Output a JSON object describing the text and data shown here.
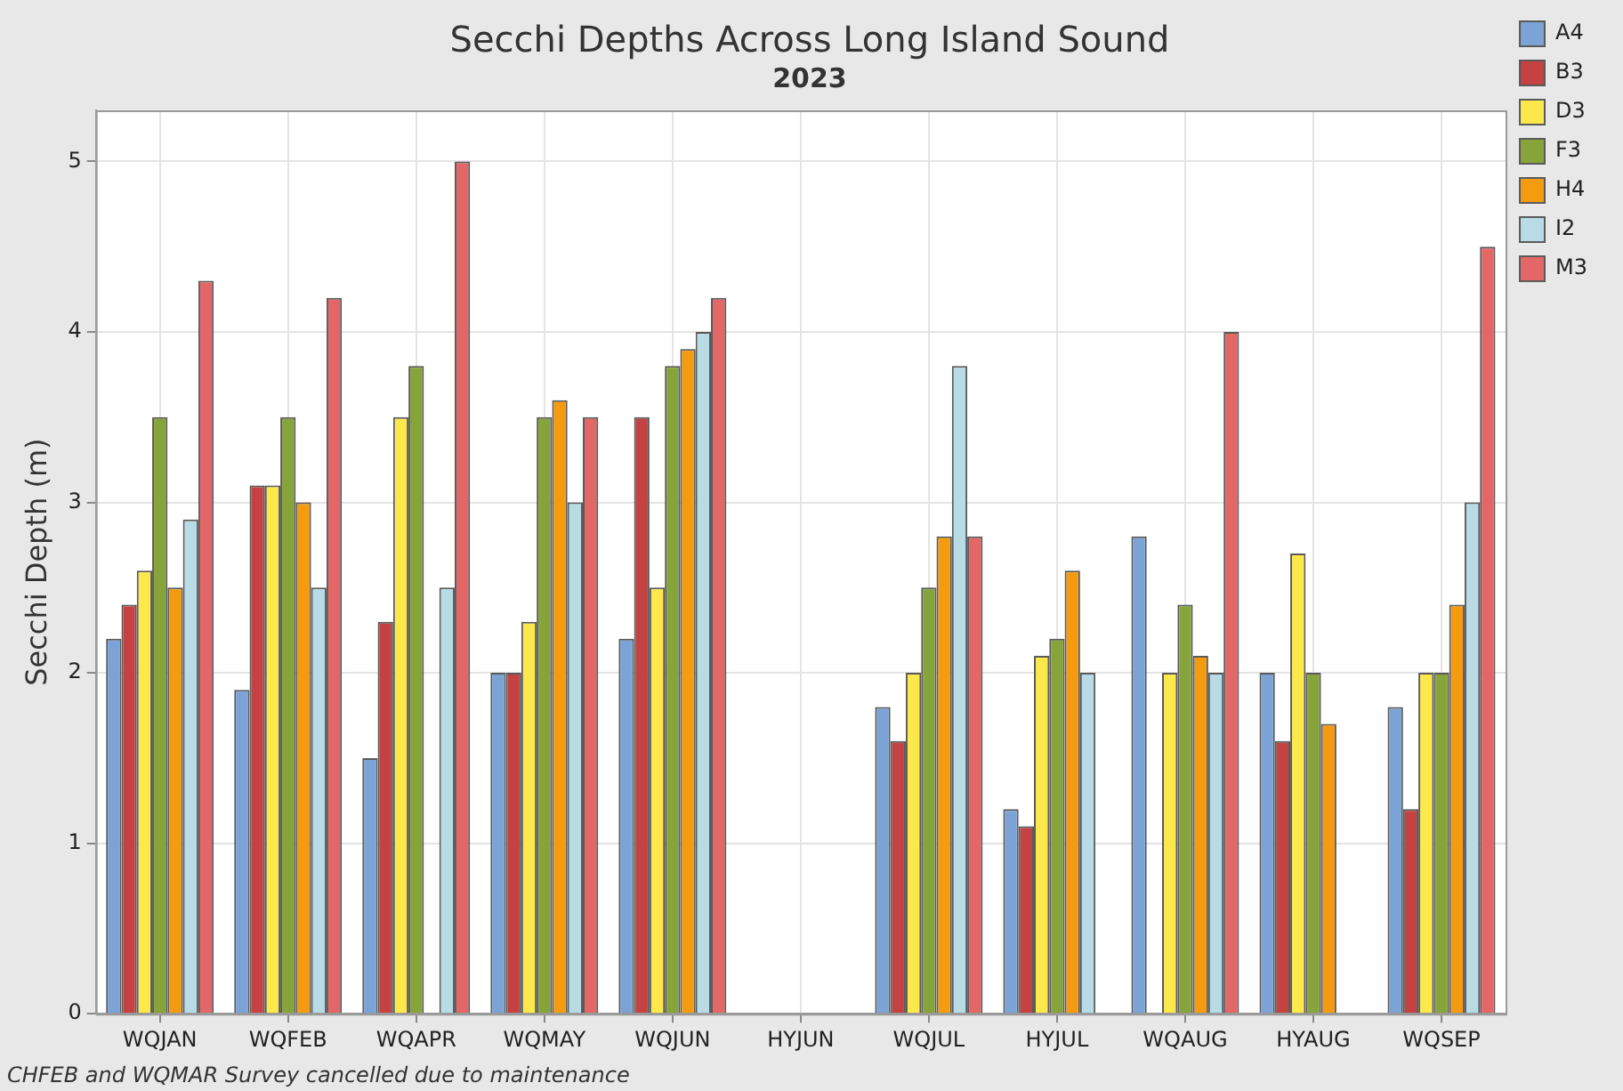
{
  "chart_data": {
    "type": "bar",
    "title": "Secchi Depths Across Long Island Sound",
    "subtitle": "2023",
    "ylabel": "Secchi Depth (m)",
    "categories": [
      "WQJAN",
      "WQFEB",
      "WQAPR",
      "WQMAY",
      "WQJUN",
      "HYJUN",
      "WQJUL",
      "HYJUL",
      "WQAUG",
      "HYAUG",
      "WQSEP"
    ],
    "series": [
      {
        "name": "A4",
        "color": "#7ba3d6",
        "values": [
          2.2,
          1.9,
          1.5,
          2.0,
          2.2,
          null,
          1.8,
          1.2,
          2.8,
          2.0,
          1.8
        ]
      },
      {
        "name": "B3",
        "color": "#c44242",
        "values": [
          2.4,
          3.1,
          2.3,
          2.0,
          3.5,
          null,
          1.6,
          1.1,
          null,
          1.6,
          1.2
        ]
      },
      {
        "name": "D3",
        "color": "#fde84c",
        "values": [
          2.6,
          3.1,
          3.5,
          2.3,
          2.5,
          null,
          2.0,
          2.1,
          2.0,
          2.7,
          2.0
        ]
      },
      {
        "name": "F3",
        "color": "#87a43a",
        "values": [
          3.5,
          3.5,
          3.8,
          3.5,
          3.8,
          null,
          2.5,
          2.2,
          2.4,
          2.0,
          2.0
        ]
      },
      {
        "name": "H4",
        "color": "#f59b0f",
        "values": [
          2.5,
          3.0,
          null,
          3.6,
          3.9,
          null,
          2.8,
          2.6,
          2.1,
          1.7,
          2.4
        ]
      },
      {
        "name": "I2",
        "color": "#b9dbe6",
        "values": [
          2.9,
          2.5,
          2.5,
          3.0,
          4.0,
          null,
          3.8,
          2.0,
          2.0,
          null,
          3.0
        ]
      },
      {
        "name": "M3",
        "color": "#e46767",
        "values": [
          4.3,
          4.2,
          5.0,
          3.5,
          4.2,
          null,
          2.8,
          null,
          4.0,
          null,
          4.5
        ]
      }
    ],
    "ylim": [
      0,
      5.3
    ],
    "yticks": [
      0,
      1,
      2,
      3,
      4,
      5
    ],
    "grid": true,
    "legend": "top right",
    "annotations": [
      "CHFEB and WQMAR Survey cancelled due to maintenance"
    ]
  }
}
